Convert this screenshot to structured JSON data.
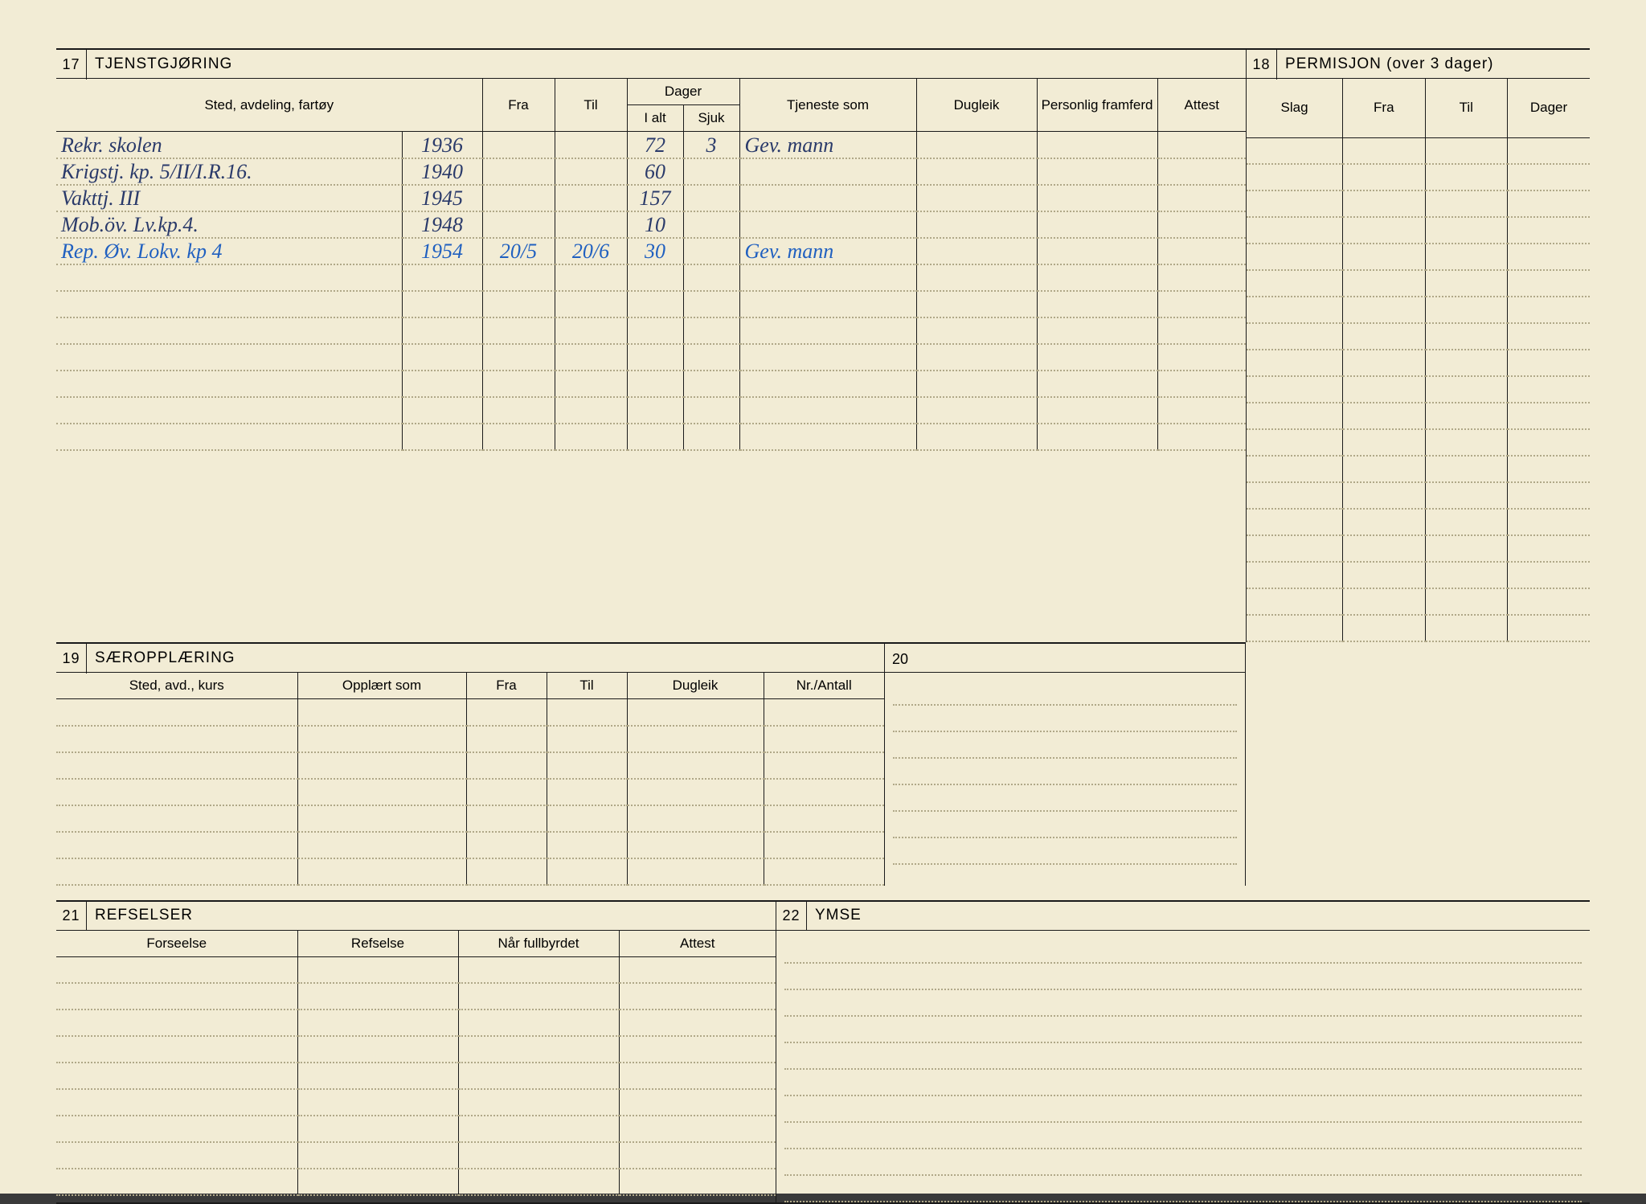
{
  "page_bg": "#f2ecd5",
  "text_color": "#1a1a1a",
  "dotted_color": "#b0a888",
  "handwriting_color": "#2a3a6a",
  "handwriting_blue": "#2060c0",
  "sections": {
    "s17": {
      "num": "17",
      "title": "TJENSTGJØRING"
    },
    "s18": {
      "num": "18",
      "title": "PERMISJON (over 3 dager)"
    },
    "s19": {
      "num": "19",
      "title": "SÆROPPLÆRING"
    },
    "s20": {
      "num": "20",
      "title": ""
    },
    "s21": {
      "num": "21",
      "title": "REFSELSER"
    },
    "s22": {
      "num": "22",
      "title": "YMSE"
    }
  },
  "headers17": {
    "sted": "Sted, avdeling, fartøy",
    "fra": "Fra",
    "til": "Til",
    "dager": "Dager",
    "ialt": "I alt",
    "sjuk": "Sjuk",
    "tjeneste": "Tjeneste som",
    "dugleik": "Dugleik",
    "framferd": "Personlig framferd",
    "attest": "Attest"
  },
  "headers18": {
    "slag": "Slag",
    "fra": "Fra",
    "til": "Til",
    "dager": "Dager"
  },
  "headers19": {
    "sted": "Sted, avd., kurs",
    "opplart": "Opplært som",
    "fra": "Fra",
    "til": "Til",
    "dugleik": "Dugleik",
    "nr": "Nr./Antall"
  },
  "headers21": {
    "forseelse": "Forseelse",
    "refselse": "Refselse",
    "nar": "Når fullbyrdet",
    "attest": "Attest"
  },
  "rows17": [
    {
      "sted": "Rekr. skolen",
      "year": "1936",
      "fra": "",
      "til": "",
      "ialt": "72",
      "sjuk": "3",
      "tjeneste": "Gev. mann",
      "cls": "handwriting"
    },
    {
      "sted": "Krigstj. kp. 5/II/I.R.16.",
      "year": "1940",
      "fra": "",
      "til": "",
      "ialt": "60",
      "sjuk": "",
      "tjeneste": "",
      "cls": "handwriting"
    },
    {
      "sted": "Vakttj. III",
      "year": "1945",
      "fra": "",
      "til": "",
      "ialt": "157",
      "sjuk": "",
      "tjeneste": "",
      "cls": "handwriting"
    },
    {
      "sted": "Mob.öv. Lv.kp.4.",
      "year": "1948",
      "fra": "",
      "til": "",
      "ialt": "10",
      "sjuk": "",
      "tjeneste": "",
      "cls": "handwriting"
    },
    {
      "sted": "Rep. Øv. Lokv. kp 4",
      "year": "1954",
      "fra": "20/5",
      "til": "20/6",
      "ialt": "30",
      "sjuk": "",
      "tjeneste": "Gev. mann",
      "cls": "handwriting-blue"
    }
  ],
  "blank_rows_17": 7,
  "blank_rows_18": 19,
  "blank_rows_19": 7,
  "blank_rows_20": 7,
  "blank_rows_21": 9,
  "blank_rows_22": 10
}
